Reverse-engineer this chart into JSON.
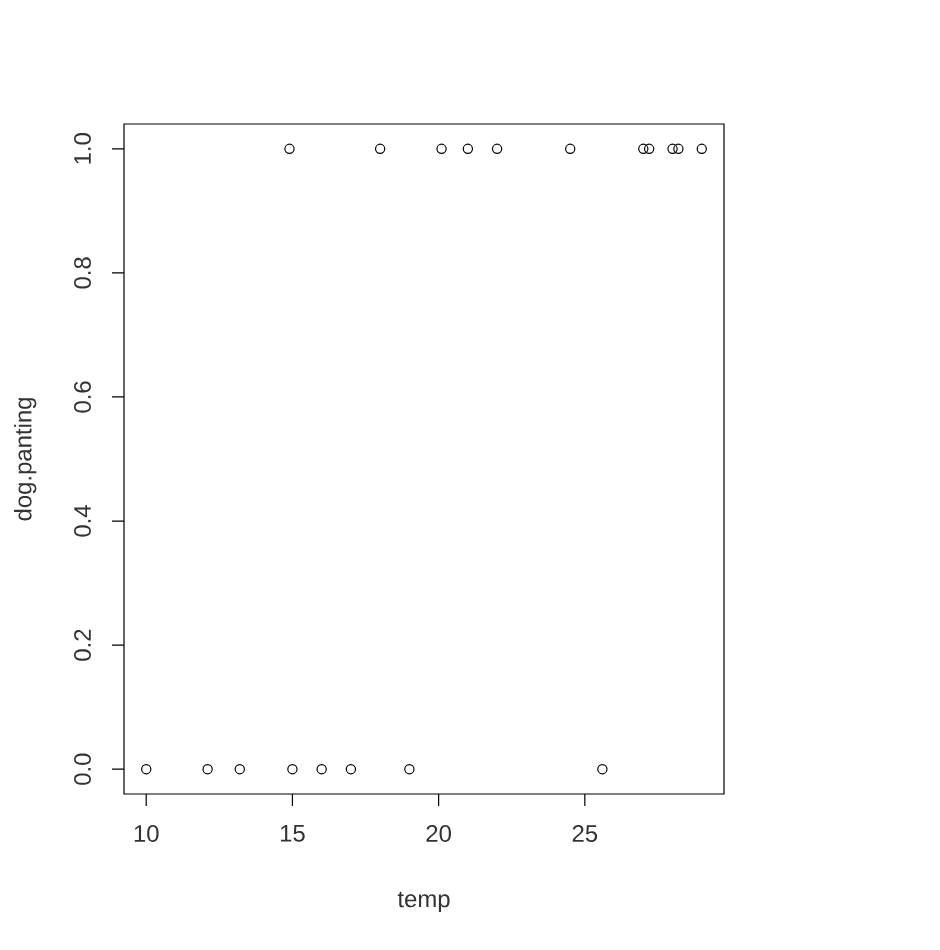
{
  "chart_data": {
    "type": "scatter",
    "x": [
      10.0,
      12.1,
      13.2,
      15.0,
      16.0,
      17.0,
      19.0,
      25.6,
      14.9,
      18.0,
      20.1,
      21.0,
      22.0,
      24.5,
      27.0,
      27.2,
      28.0,
      28.2,
      29.0
    ],
    "values": [
      0,
      0,
      0,
      0,
      0,
      0,
      0,
      0,
      1,
      1,
      1,
      1,
      1,
      1,
      1,
      1,
      1,
      1,
      1
    ],
    "color": "#000000",
    "marker": "circle",
    "xlabel": "temp",
    "ylabel": "dog.panting",
    "xlim": [
      9.24,
      29.76
    ],
    "ylim": [
      -0.04,
      1.04
    ],
    "xticks": [
      10,
      15,
      20,
      25
    ],
    "yticks": [
      {
        "value": 0,
        "label": "0.0"
      },
      0.2,
      0.4,
      0.6,
      0.8,
      {
        "value": 1,
        "label": "1.0"
      }
    ],
    "grid": false
  }
}
